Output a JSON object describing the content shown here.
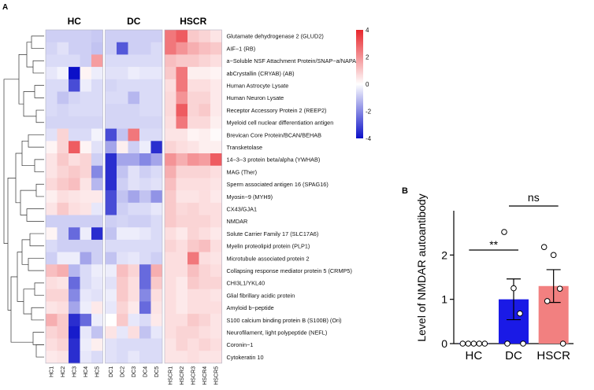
{
  "panels": {
    "a": "A",
    "b": "B"
  },
  "chart_data": [
    {
      "type": "heatmap",
      "title": "",
      "column_groups": [
        "HC",
        "DC",
        "HSCR"
      ],
      "columns": [
        "HC1",
        "HC2",
        "HC3",
        "HC4",
        "HC5",
        "DC1",
        "DC2",
        "DC3",
        "DC4",
        "DC5",
        "HSCR1",
        "HSCR2",
        "HSCR3",
        "HSCR4",
        "HSCR5"
      ],
      "rows": [
        "Glutamate dehydrogenase 2 (GLUD2)",
        "AIF−1 (RB)",
        "a−Soluble NSF Attachment Protein/SNAP−a/NAPA",
        "abCrystallin (CRYAB) (AB)",
        "Human Astrocyte Lysate",
        "Human Neuron Lysate",
        "Receptor Accessory Protein 2 (REEP2)",
        "Myeloid cell nuclear differentiation antigen",
        "Brevican Core Protein/BCAN/BEHAB",
        "Transketolase",
        "14−3−3 protein beta/alpha (YWHAB)",
        "MAG (Ther)",
        "Sperm associated antigen 16 (SPAG16)",
        "Myosin−9 (MYH9)",
        "CX43/GJA1",
        "NMDAR",
        "Solute Carrier Family 17 (SLC17A6)",
        "Myelin proteolipid protein (PLP1)",
        "Microtubule associated protein 2",
        "Collapsing response mediator protein 5 (CRMP5)",
        "CHI3L1/YKL40",
        "Glial fibrillary acidic protein",
        "Amyloid b−peptide",
        "S100 calcium binding protein B (S100B) (Ori)",
        "Neurofilament, light polypeptide (NEFL)",
        "Coronin−1",
        "Cytokeratin 10"
      ],
      "values": [
        [
          -0.8,
          -0.8,
          -0.8,
          -0.8,
          -0.9,
          -0.8,
          -0.8,
          -0.8,
          -0.8,
          -0.8,
          2.5,
          3.0,
          1.0,
          0.8,
          0.5
        ],
        [
          -0.7,
          -0.5,
          -0.8,
          -0.8,
          -1.0,
          -0.8,
          -2.8,
          -0.8,
          -0.8,
          -0.6,
          2.5,
          2.0,
          1.5,
          1.2,
          1.0
        ],
        [
          -0.6,
          -0.6,
          -0.6,
          -0.8,
          1.8,
          -0.6,
          -0.6,
          -0.6,
          -0.6,
          -0.6,
          1.2,
          1.0,
          1.0,
          0.8,
          0.6
        ],
        [
          -0.4,
          -0.2,
          -4.0,
          0.2,
          -0.3,
          -0.5,
          -0.5,
          -0.3,
          -0.4,
          -0.4,
          1.0,
          2.5,
          0.3,
          0.3,
          0.2
        ],
        [
          -0.6,
          -0.6,
          -3.0,
          -0.3,
          -0.6,
          -0.7,
          -0.6,
          -0.6,
          -0.6,
          -0.6,
          0.6,
          2.5,
          0.6,
          0.6,
          0.4
        ],
        [
          -0.6,
          -1.0,
          -0.7,
          -0.6,
          -0.6,
          -0.6,
          -0.6,
          -1.2,
          -0.6,
          -0.6,
          0.7,
          2.0,
          0.8,
          0.8,
          0.4
        ],
        [
          -0.6,
          -0.7,
          -0.6,
          -0.6,
          -0.6,
          -0.7,
          -0.7,
          -0.7,
          -0.6,
          -0.6,
          0.7,
          3.0,
          0.8,
          1.0,
          0.4
        ],
        [
          -0.7,
          -0.7,
          -0.7,
          -0.7,
          -0.7,
          -0.7,
          -0.7,
          -0.7,
          -0.7,
          -0.7,
          0.6,
          2.5,
          0.7,
          0.7,
          0.3
        ],
        [
          -0.5,
          0.8,
          -0.6,
          -0.6,
          -0.2,
          -3.0,
          -1.0,
          2.5,
          -0.6,
          -0.6,
          0.5,
          0.5,
          0.2,
          0.3,
          0.1
        ],
        [
          0.2,
          0.8,
          3.0,
          0.2,
          -0.5,
          -1.5,
          0.3,
          -0.8,
          -0.3,
          -3.5,
          0.8,
          0.6,
          0.5,
          0.3,
          0.3
        ],
        [
          0.5,
          1.0,
          0.6,
          0.8,
          -0.8,
          -3.5,
          -1.5,
          -1.5,
          -2.0,
          -1.5,
          2.0,
          1.5,
          2.0,
          1.8,
          3.0
        ],
        [
          0.5,
          0.8,
          1.0,
          0.8,
          -2.0,
          -3.5,
          -1.0,
          -0.5,
          -0.8,
          -0.6,
          1.5,
          0.8,
          0.8,
          0.8,
          0.6
        ],
        [
          0.7,
          1.0,
          1.2,
          0.5,
          -1.2,
          -3.5,
          -0.8,
          -0.5,
          -0.6,
          -0.5,
          1.2,
          0.6,
          0.6,
          0.6,
          0.5
        ],
        [
          0.3,
          0.6,
          0.5,
          0.4,
          0.4,
          -3.0,
          -1.0,
          -1.5,
          -1.0,
          -1.8,
          1.0,
          0.5,
          0.5,
          0.6,
          0.4
        ],
        [
          0.5,
          1.0,
          0.6,
          0.5,
          -0.4,
          -3.0,
          -0.8,
          -0.6,
          -0.6,
          -0.4,
          1.0,
          0.7,
          0.8,
          0.6,
          0.6
        ],
        [
          -0.8,
          -0.8,
          -0.8,
          -0.8,
          -0.8,
          -0.8,
          -0.7,
          -0.8,
          -0.8,
          -0.6,
          1.0,
          0.8,
          0.8,
          0.8,
          0.6
        ],
        [
          0.2,
          -0.8,
          -2.5,
          -0.3,
          -3.5,
          -1.0,
          -0.3,
          -0.3,
          -0.4,
          -0.6,
          0.6,
          0.4,
          0.8,
          0.6,
          0.4
        ],
        [
          -0.6,
          -0.8,
          -0.8,
          -0.8,
          -0.8,
          -0.6,
          -0.6,
          -0.6,
          -0.6,
          -0.6,
          0.8,
          0.6,
          1.0,
          1.2,
          0.6
        ],
        [
          -0.8,
          -0.3,
          -0.3,
          -1.5,
          -0.8,
          -1.0,
          -0.5,
          -0.4,
          -0.6,
          -0.8,
          0.6,
          0.6,
          2.5,
          0.6,
          0.5
        ],
        [
          1.2,
          1.5,
          -1.2,
          -0.6,
          -0.3,
          -0.3,
          1.2,
          0.8,
          -2.5,
          1.5,
          0.6,
          0.6,
          1.2,
          0.8,
          0.6
        ],
        [
          0.6,
          0.5,
          -2.5,
          -0.6,
          -0.4,
          -0.5,
          1.0,
          0.6,
          -2.5,
          1.0,
          0.6,
          0.4,
          1.0,
          0.8,
          0.8
        ],
        [
          0.8,
          0.8,
          -2.0,
          -0.4,
          -0.5,
          -0.3,
          1.0,
          0.6,
          -2.0,
          0.6,
          0.6,
          0.4,
          0.6,
          0.6,
          0.5
        ],
        [
          0.5,
          0.6,
          -1.5,
          -0.3,
          0.4,
          -0.4,
          0.8,
          0.4,
          -2.5,
          0.5,
          0.6,
          0.4,
          0.6,
          0.6,
          0.6
        ],
        [
          1.5,
          1.0,
          -3.5,
          -2.5,
          -0.3,
          0.0,
          1.0,
          -0.4,
          -0.6,
          0.4,
          0.6,
          0.6,
          1.0,
          0.8,
          0.5
        ],
        [
          0.8,
          1.0,
          -3.8,
          -0.4,
          -1.0,
          0.5,
          -0.4,
          0.6,
          -1.0,
          -0.4,
          0.6,
          0.8,
          0.8,
          0.6,
          0.5
        ],
        [
          0.6,
          0.8,
          -3.5,
          -0.3,
          0.3,
          -0.5,
          -0.6,
          -0.6,
          -0.6,
          -0.6,
          0.5,
          0.8,
          0.6,
          0.8,
          0.6
        ],
        [
          0.4,
          0.5,
          -3.5,
          -0.4,
          -0.6,
          -0.5,
          -0.6,
          -0.4,
          -0.6,
          -0.6,
          0.5,
          0.5,
          0.6,
          0.5,
          0.5
        ]
      ],
      "colorbar": {
        "range": [
          -4,
          4
        ],
        "ticks": [
          4,
          2,
          0,
          -2,
          -4
        ],
        "low_color": "#0b10c8",
        "mid_color": "#ffffff",
        "high_color": "#e8262c"
      }
    },
    {
      "type": "bar",
      "ylabel": "Level of NMDAR autoantibody",
      "xlabel": "",
      "categories": [
        "HC",
        "DC",
        "HSCR"
      ],
      "values": [
        0,
        1.0,
        1.3
      ],
      "error_upper": [
        0,
        1.46,
        1.67
      ],
      "error_lower": [
        0,
        0.54,
        0.93
      ],
      "colors": [
        "#1a1ae6",
        "#1a1ae6",
        "#f28080"
      ],
      "points": [
        [
          0,
          0,
          0,
          0,
          0
        ],
        [
          2.52,
          0.68,
          0.0,
          0.0,
          1.25
        ],
        [
          2.18,
          1.24,
          0.96,
          0.0,
          2.0
        ]
      ],
      "ylim": [
        0,
        3
      ],
      "yticks": [
        0,
        1,
        2
      ],
      "annotations": [
        {
          "between": [
            "HC",
            "DC"
          ],
          "label": "**"
        },
        {
          "between": [
            "DC",
            "HSCR"
          ],
          "label": "ns"
        }
      ]
    }
  ]
}
